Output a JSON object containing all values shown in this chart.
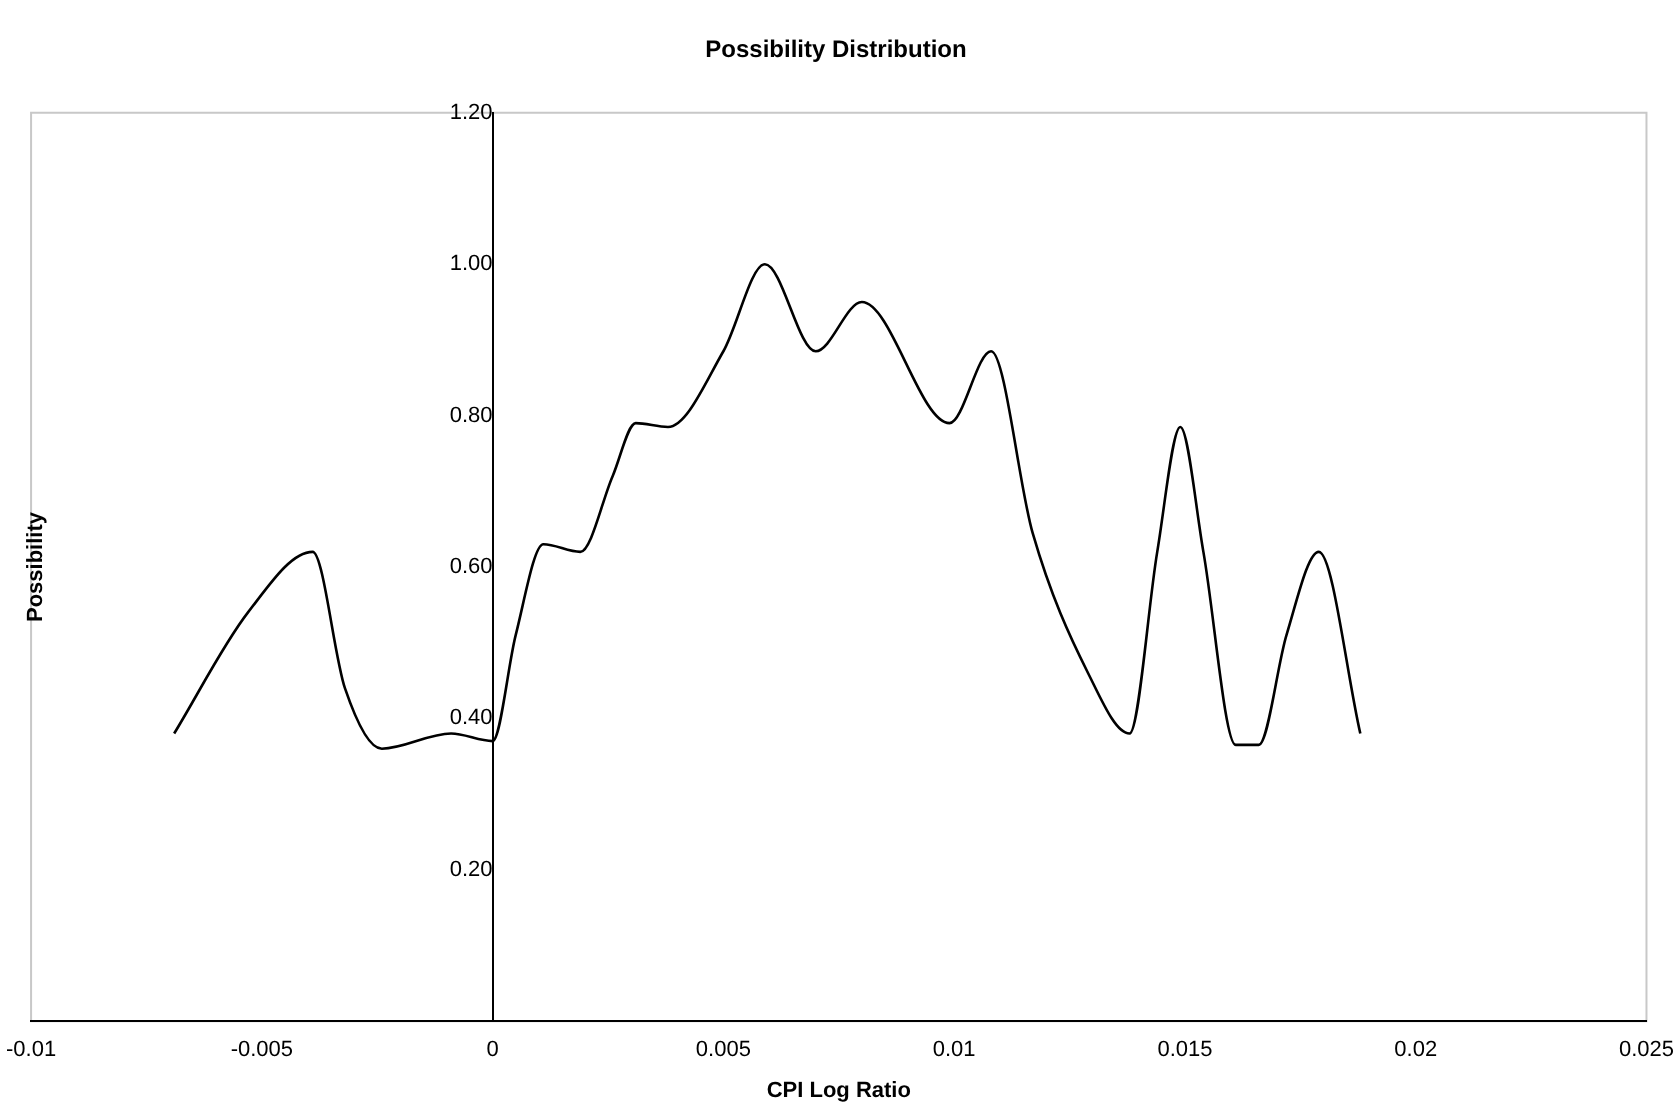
{
  "chart_data": {
    "type": "line",
    "title": "Possibility Distribution",
    "xlabel": "CPI Log Ratio",
    "ylabel": "Possibility",
    "x": [
      -0.0069,
      -0.0053,
      -0.0039,
      -0.0032,
      -0.0024,
      -0.0009,
      0,
      0.0005,
      0.0011,
      0.0019,
      0.0026,
      0.0031,
      0.0038,
      0.005,
      0.0059,
      0.007,
      0.008,
      0.0099,
      0.0108,
      0.0117,
      0.0129,
      0.0138,
      0.0144,
      0.0149,
      0.0154,
      0.0161,
      0.0166,
      0.0172,
      0.0179,
      0.0188
    ],
    "series": [
      {
        "color": "#000000",
        "values": [
          0.38,
          0.54,
          0.62,
          0.44,
          0.36,
          0.38,
          0.37,
          0.51,
          0.63,
          0.62,
          0.72,
          0.79,
          0.785,
          0.885,
          1.0,
          0.885,
          0.95,
          0.79,
          0.885,
          0.645,
          0.46,
          0.38,
          0.62,
          0.785,
          0.62,
          0.365,
          0.365,
          0.51,
          0.62,
          0.38
        ]
      }
    ],
    "xlim": [
      -0.01,
      0.025
    ],
    "xticks": [
      -0.01,
      -0.005,
      0,
      0.005,
      0.01,
      0.015,
      0.02,
      0.025
    ],
    "ylim": [
      0,
      1.2
    ],
    "yticks": [
      {
        "value": 0,
        "label": null
      },
      {
        "value": 0.2,
        "label": "0.20"
      },
      {
        "value": 0.4,
        "label": "0.40"
      },
      {
        "value": 0.6,
        "label": "0.60"
      },
      {
        "value": 0.8,
        "label": "0.80"
      },
      {
        "value": 1.0,
        "label": "1.00"
      },
      {
        "value": 1.2,
        "label": "1.20"
      }
    ],
    "grid": false,
    "legend": false,
    "marker": "none",
    "line_style": "solid"
  }
}
